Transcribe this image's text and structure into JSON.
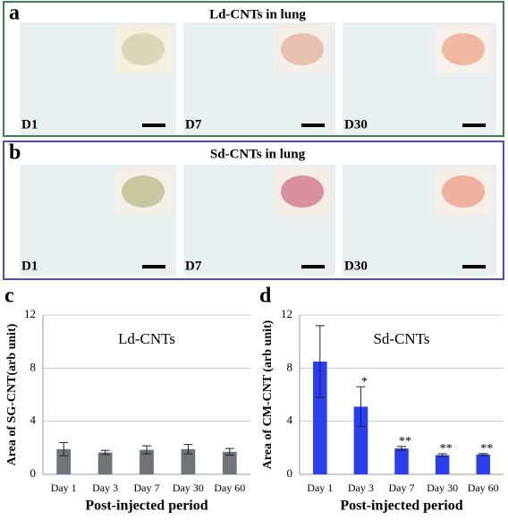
{
  "panels": [
    {
      "letter": "a",
      "title": "Ld-CNTs in lung",
      "images": [
        "D1",
        "D7",
        "D30"
      ]
    },
    {
      "letter": "b",
      "title": "Sd-CNTs in lung",
      "images": [
        "D1",
        "D7",
        "D30"
      ]
    }
  ],
  "chart_data": [
    {
      "type": "bar",
      "letter": "c",
      "title": "Ld-CNTs",
      "y_label": "Area of SG-CNT(arb unit)",
      "x_label": "Post-injected period",
      "categories": [
        "Day 1",
        "Day 3",
        "Day 7",
        "Day 30",
        "Day 60"
      ],
      "values": [
        1.9,
        1.65,
        1.85,
        1.9,
        1.7
      ],
      "errors": [
        0.5,
        0.15,
        0.3,
        0.35,
        0.25
      ],
      "color": "#6e7478",
      "ylim": [
        0,
        12
      ],
      "yticks": [
        0,
        4,
        8,
        12
      ],
      "grid": true
    },
    {
      "type": "bar",
      "letter": "d",
      "title": "Sd-CNTs",
      "y_label": "Area of CM-CNT (arb unit)",
      "x_label": "Post-injected period",
      "categories": [
        "Day 1",
        "Day 3",
        "Day 7",
        "Day 30",
        "Day 60"
      ],
      "values": [
        8.5,
        5.1,
        1.95,
        1.45,
        1.5
      ],
      "errors": [
        2.7,
        1.5,
        0.15,
        0.1,
        0.07
      ],
      "annotations": [
        null,
        "*",
        "**",
        "**",
        "**"
      ],
      "color": "#2b3ff0",
      "ylim": [
        0,
        12
      ],
      "yticks": [
        0,
        4,
        8,
        12
      ],
      "grid": true
    }
  ]
}
